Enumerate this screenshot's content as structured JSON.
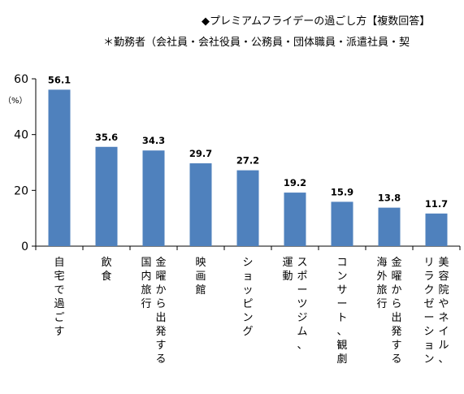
{
  "header": {
    "title": "◆プレミアムフライデーの過ごし方【複数回答】",
    "note": "＊勤務者（会社員・会社役員・公務員・団体職員・派遣社員・契"
  },
  "chart_data": {
    "type": "bar",
    "title": "◆プレミアムフライデーの過ごし方【複数回答】",
    "subtitle": "＊勤務者（会社員・会社役員・公務員・団体職員・派遣社員・契",
    "unit_label": "（%）",
    "ylim": [
      0,
      60
    ],
    "yticks": [
      0,
      20,
      40,
      60
    ],
    "grid": false,
    "bar_color": "#4f81bd",
    "categories": [
      [
        "自宅で過ごす"
      ],
      [
        "飲食"
      ],
      [
        "金曜から出発する",
        "国内旅行"
      ],
      [
        "映画館"
      ],
      [
        "ショッピング"
      ],
      [
        "スポーツジム、",
        "運動"
      ],
      [
        "コンサート、観劇"
      ],
      [
        "金曜から出発する",
        "海外旅行"
      ],
      [
        "美容院やネイル、",
        "リラクゼーション"
      ]
    ],
    "values": [
      56.1,
      35.6,
      34.3,
      29.7,
      27.2,
      19.2,
      15.9,
      13.8,
      11.7
    ],
    "value_labels": [
      "56.1",
      "35.6",
      "34.3",
      "29.7",
      "27.2",
      "19.2",
      "15.9",
      "13.8",
      "11.7"
    ]
  }
}
